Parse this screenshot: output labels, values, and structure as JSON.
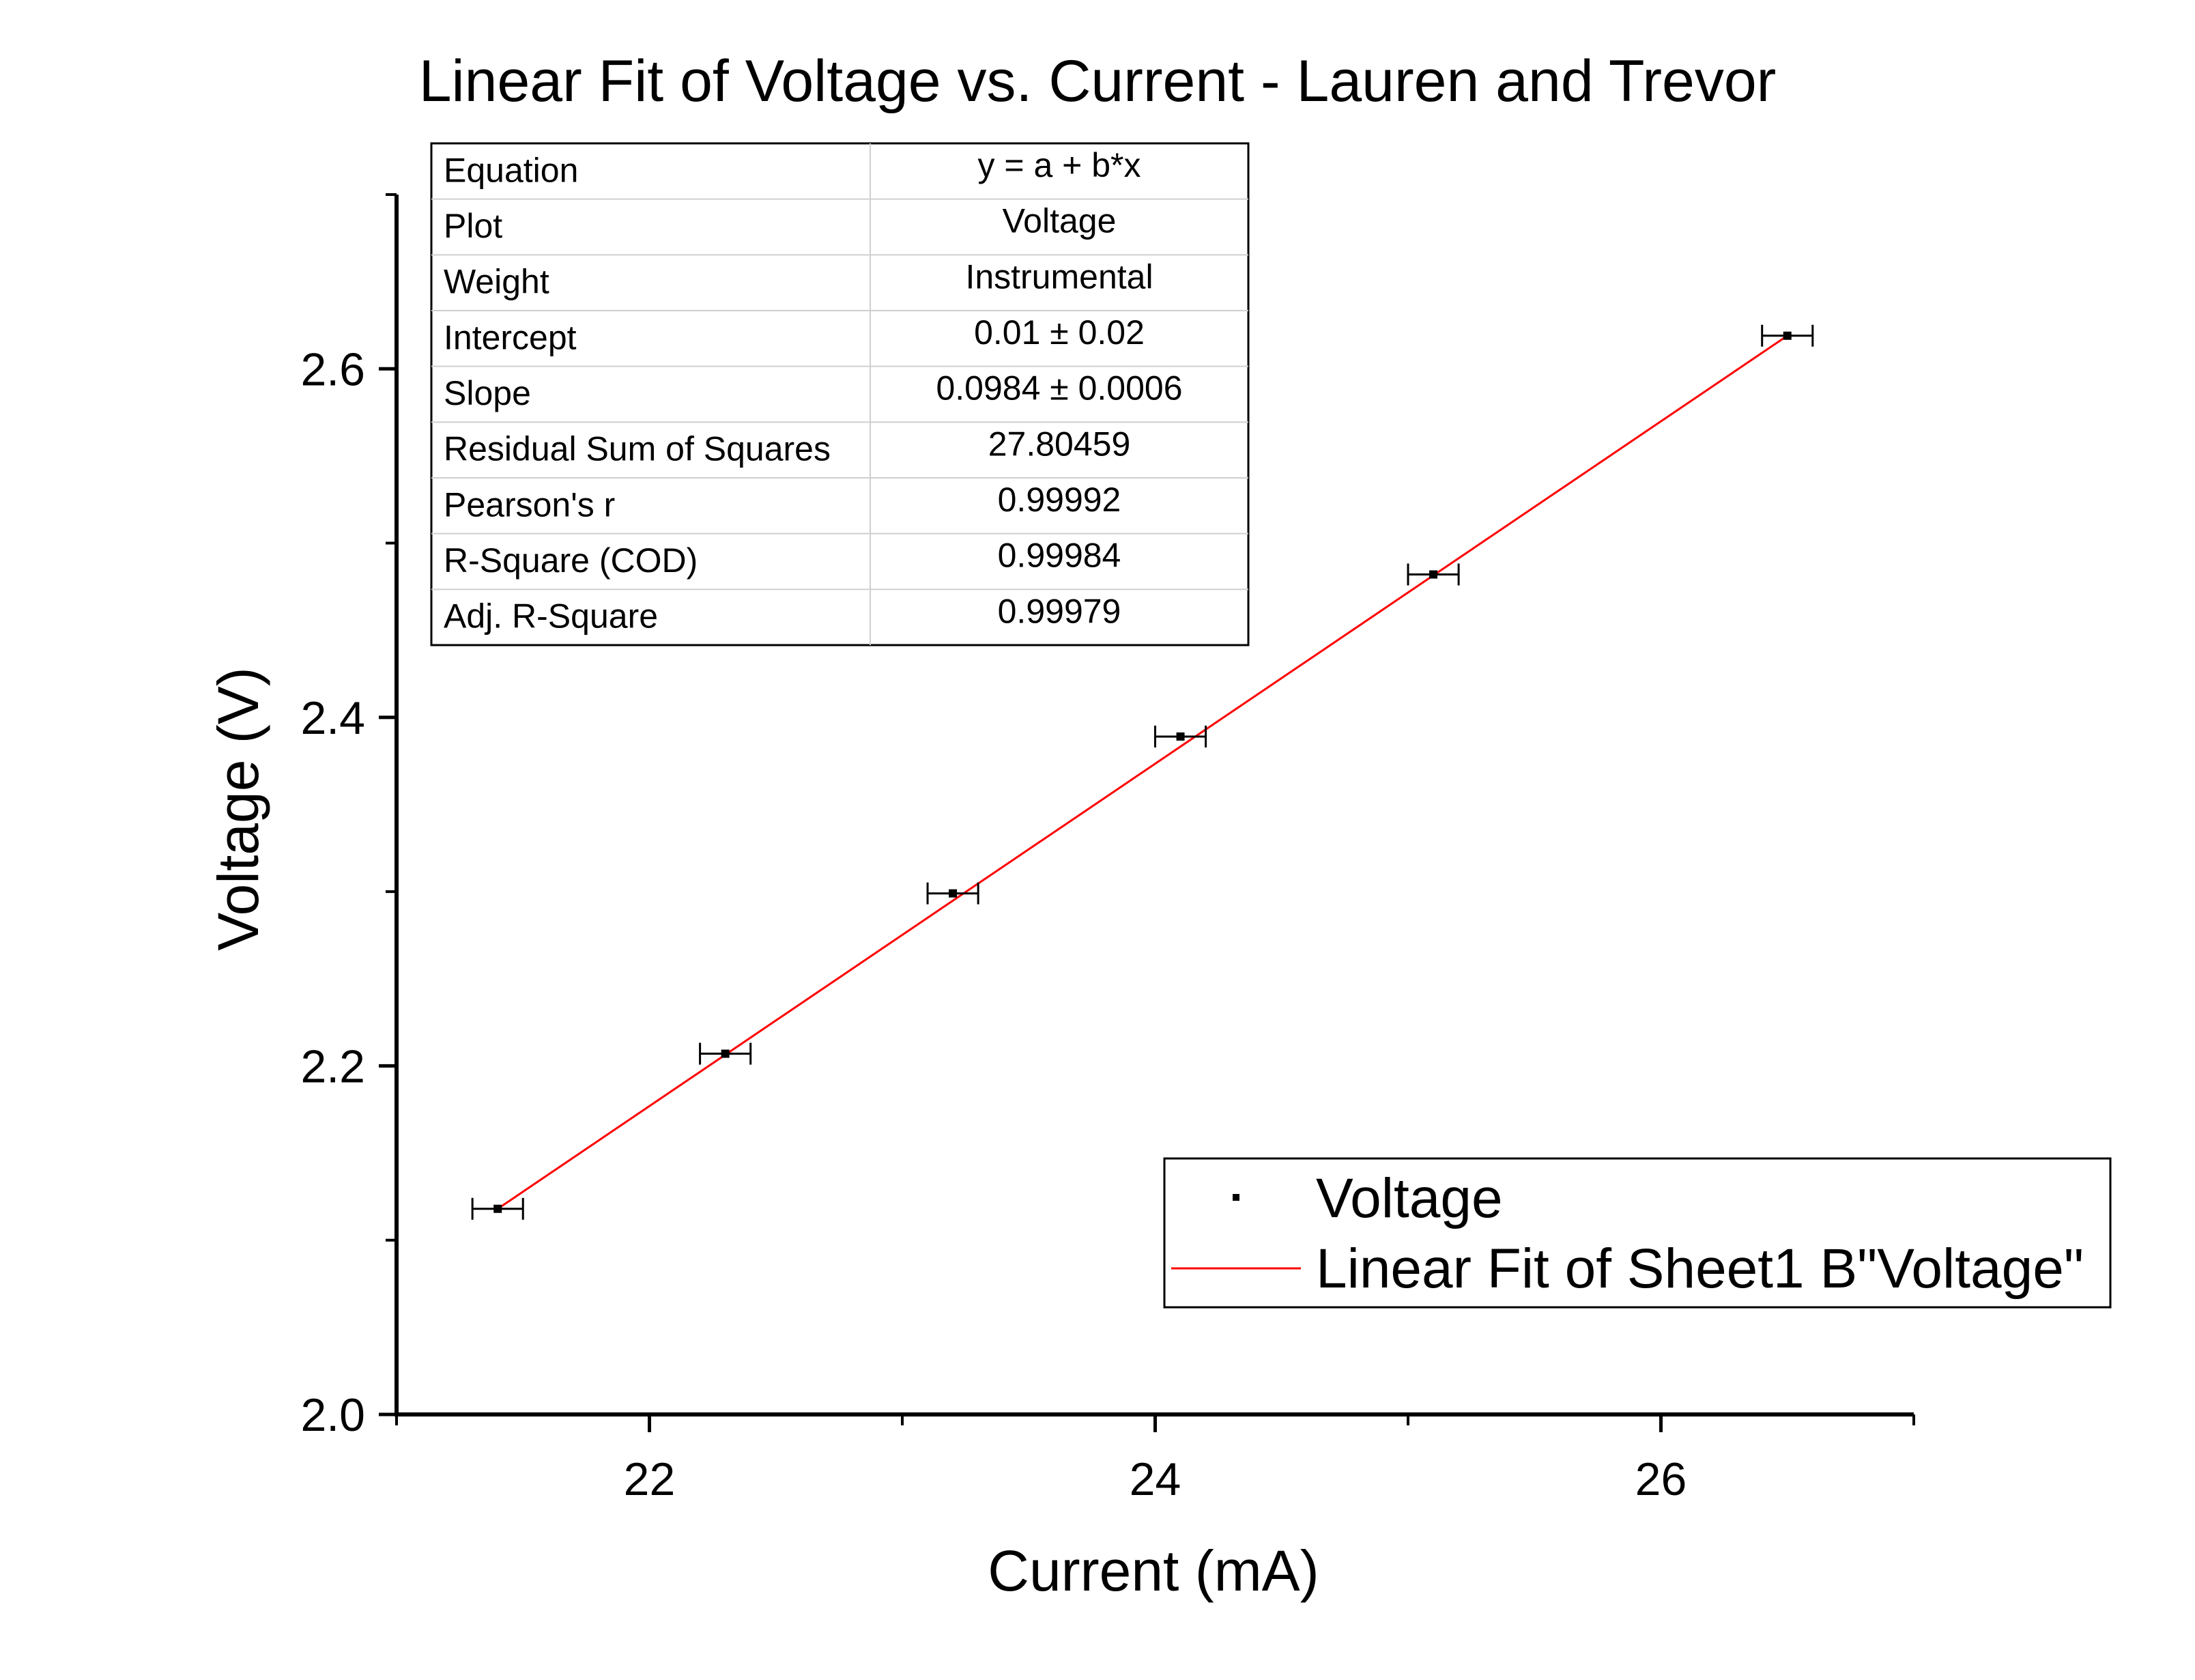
{
  "chart_data": {
    "type": "scatter",
    "title": "Linear Fit of Voltage vs. Current - Lauren and Trevor",
    "xlabel": "Current (mA)",
    "ylabel": "Voltage (V)",
    "xlim": [
      21.0,
      27.0
    ],
    "ylim": [
      2.0,
      2.7
    ],
    "xticks": [
      22,
      24,
      26
    ],
    "xtick_labels": [
      "22",
      "24",
      "26"
    ],
    "yticks": [
      2.0,
      2.2,
      2.4,
      2.6
    ],
    "ytick_labels": [
      "2.0",
      "2.2",
      "2.4",
      "2.6"
    ],
    "grid": false,
    "legend_position": "bottom-right",
    "series": [
      {
        "name": "Voltage",
        "kind": "scatter",
        "color": "#000000",
        "x": [
          21.4,
          22.3,
          23.2,
          24.1,
          25.1,
          26.5
        ],
        "y": [
          2.118,
          2.207,
          2.299,
          2.389,
          2.482,
          2.619
        ],
        "x_error": [
          0.1,
          0.1,
          0.1,
          0.1,
          0.1,
          0.1
        ]
      },
      {
        "name": "Linear Fit of Sheet1 B\"Voltage\"",
        "kind": "line",
        "color": "#ff0000",
        "x": [
          21.4,
          26.5
        ],
        "y": [
          2.118,
          2.619
        ]
      }
    ],
    "fit_table": {
      "rows": [
        {
          "label": "Equation",
          "value": "y = a + b*x"
        },
        {
          "label": "Plot",
          "value": "Voltage"
        },
        {
          "label": "Weight",
          "value": "Instrumental"
        },
        {
          "label": "Intercept",
          "value": "0.01 ± 0.02"
        },
        {
          "label": "Slope",
          "value": "0.0984 ± 0.0006"
        },
        {
          "label": "Residual Sum of Squares",
          "value": "27.80459"
        },
        {
          "label": "Pearson's r",
          "value": "0.99992"
        },
        {
          "label": "R-Square (COD)",
          "value": "0.99984"
        },
        {
          "label": "Adj. R-Square",
          "value": "0.99979"
        }
      ]
    }
  }
}
